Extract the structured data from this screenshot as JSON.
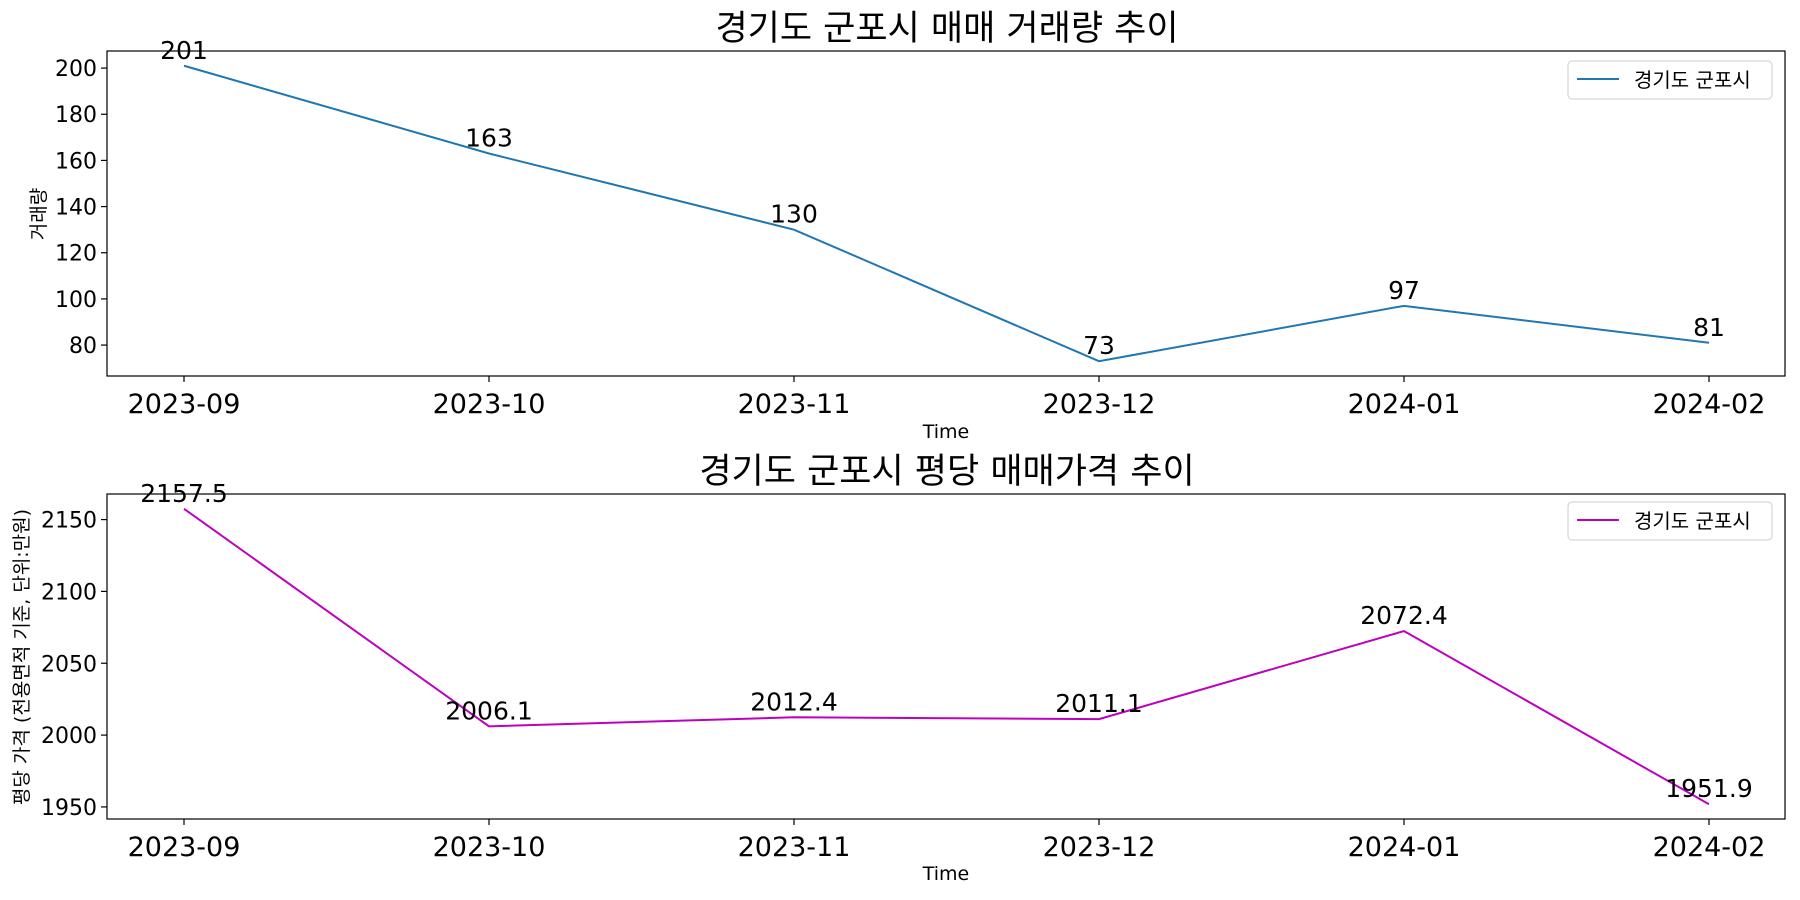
{
  "chart_data": [
    {
      "type": "line",
      "title": "경기도 군포시 매매 거래량 추이",
      "xlabel": "Time",
      "ylabel": "거래량",
      "categories": [
        "2023-09",
        "2023-10",
        "2023-11",
        "2023-12",
        "2024-01",
        "2024-02"
      ],
      "series": [
        {
          "name": "경기도 군포시",
          "color": "#1f77b4",
          "values": [
            201,
            163,
            130,
            73,
            97,
            81
          ],
          "labels": [
            "201",
            "163",
            "130",
            "73",
            "97",
            "81"
          ]
        }
      ],
      "yticks": [
        80,
        100,
        120,
        140,
        160,
        180,
        200
      ],
      "ylim": [
        66.6,
        207.4
      ],
      "legend": "top-right",
      "grid": false
    },
    {
      "type": "line",
      "title": "경기도 군포시 평당 매매가격 추이",
      "xlabel": "Time",
      "ylabel": "평당 가격 (전용면적 기준, 단위:만원)",
      "categories": [
        "2023-09",
        "2023-10",
        "2023-11",
        "2023-12",
        "2024-01",
        "2024-02"
      ],
      "series": [
        {
          "name": "경기도 군포시",
          "color": "#bf00bf",
          "values": [
            2157.5,
            2006.1,
            2012.4,
            2011.1,
            2072.4,
            1951.9
          ],
          "labels": [
            "2157.5",
            "2006.1",
            "2012.4",
            "2011.1",
            "2072.4",
            "1951.9"
          ]
        }
      ],
      "yticks": [
        1950,
        2000,
        2050,
        2100,
        2150
      ],
      "ylim": [
        1941.6,
        2167.8
      ],
      "legend": "top-right",
      "grid": false
    }
  ]
}
